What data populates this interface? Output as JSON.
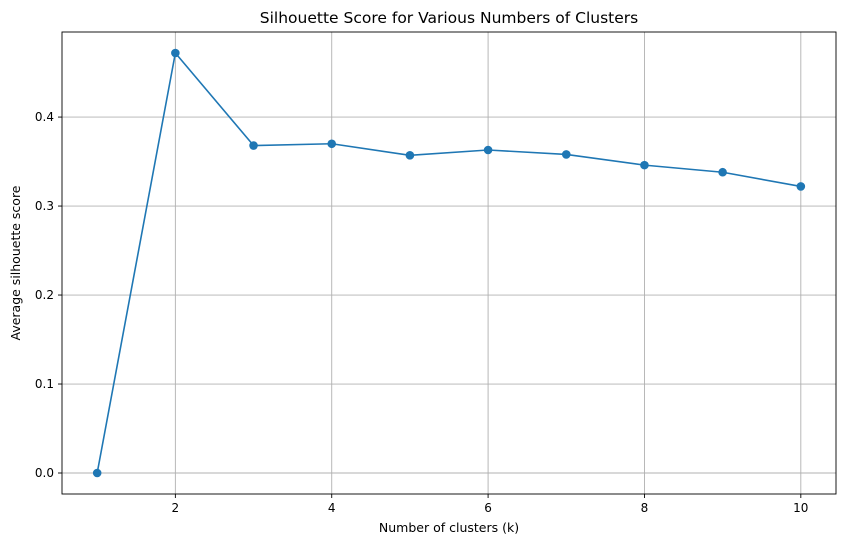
{
  "chart_data": {
    "type": "line",
    "title": "Silhouette Score for Various Numbers of Clusters",
    "xlabel": "Number of clusters (k)",
    "ylabel": "Average silhouette score",
    "x": [
      1,
      2,
      3,
      4,
      5,
      6,
      7,
      8,
      9,
      10
    ],
    "series": [
      {
        "values": [
          0.0,
          0.472,
          0.368,
          0.37,
          0.357,
          0.363,
          0.358,
          0.346,
          0.338,
          0.322
        ],
        "color": "#1f77b4",
        "marker": "circle"
      }
    ],
    "xlim": [
      0.55,
      10.45
    ],
    "ylim": [
      -0.0236,
      0.4956
    ],
    "xticks": [
      2,
      4,
      6,
      8,
      10
    ],
    "xtick_labels": [
      "2",
      "4",
      "6",
      "8",
      "10"
    ],
    "yticks": [
      0.0,
      0.1,
      0.2,
      0.3,
      0.4
    ],
    "ytick_labels": [
      "0.0",
      "0.1",
      "0.2",
      "0.3",
      "0.4"
    ],
    "grid": true,
    "legend": "none"
  }
}
